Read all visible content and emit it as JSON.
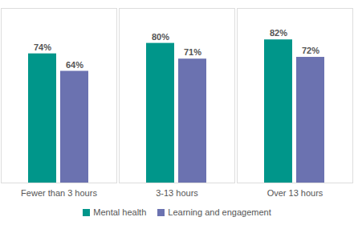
{
  "chart_data": {
    "type": "bar",
    "categories": [
      "Fewer than 3 hours",
      "3-13 hours",
      "Over 13 hours"
    ],
    "series": [
      {
        "name": "Mental health",
        "color": "#00968a",
        "values": [
          74,
          80,
          82
        ],
        "value_labels": [
          "74%",
          "80%",
          "82%"
        ]
      },
      {
        "name": "Learning and engagement",
        "color": "#6b72b0",
        "values": [
          64,
          71,
          72
        ],
        "value_labels": [
          "64%",
          "71%",
          "72%"
        ]
      }
    ],
    "ylim": [
      0,
      100
    ],
    "yticks": [],
    "data_labels": true,
    "tick_labels": "x",
    "legend": "bottom"
  }
}
